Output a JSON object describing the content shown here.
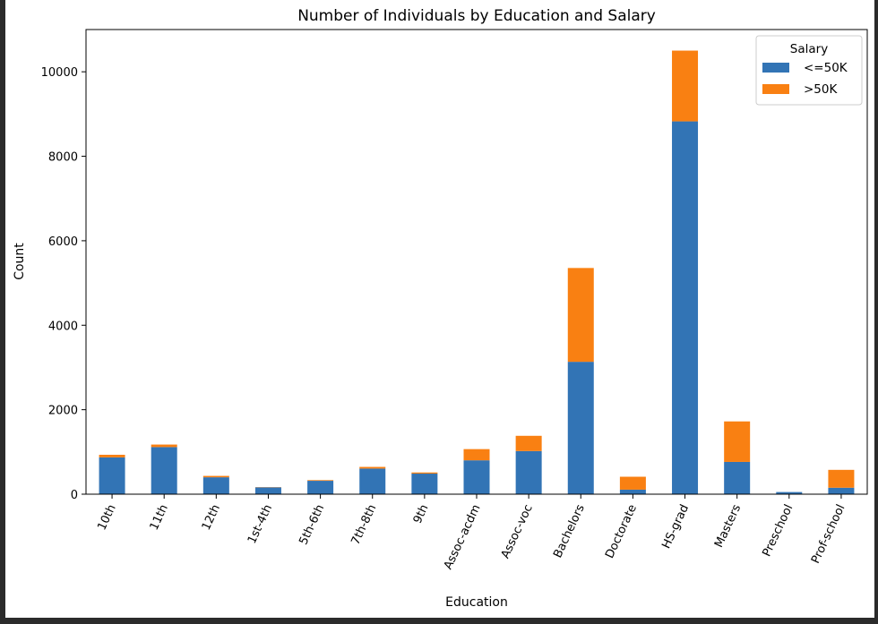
{
  "chart_data": {
    "type": "bar",
    "stacked": true,
    "title": "Number of Individuals by Education and Salary",
    "xlabel": "Education",
    "ylabel": "Count",
    "ylim": [
      0,
      11000
    ],
    "yticks": [
      0,
      2000,
      4000,
      6000,
      8000,
      10000
    ],
    "categories": [
      "10th",
      "11th",
      "12th",
      "1st-4th",
      "5th-6th",
      "7th-8th",
      "9th",
      "Assoc-acdm",
      "Assoc-voc",
      "Bachelors",
      "Doctorate",
      "HS-grad",
      "Masters",
      "Preschool",
      "Prof-school"
    ],
    "series": [
      {
        "name": "<=50K",
        "color": "#3274b5",
        "values": [
          871,
          1115,
          400,
          162,
          317,
          606,
          487,
          802,
          1021,
          3134,
          107,
          8826,
          764,
          51,
          153
        ]
      },
      {
        "name": ">50K",
        "color": "#f98012",
        "values": [
          62,
          60,
          33,
          6,
          16,
          40,
          27,
          265,
          361,
          2221,
          306,
          1675,
          959,
          0,
          423
        ]
      }
    ],
    "legend": {
      "title": "Salary",
      "position": "top-right"
    },
    "grid": false
  }
}
